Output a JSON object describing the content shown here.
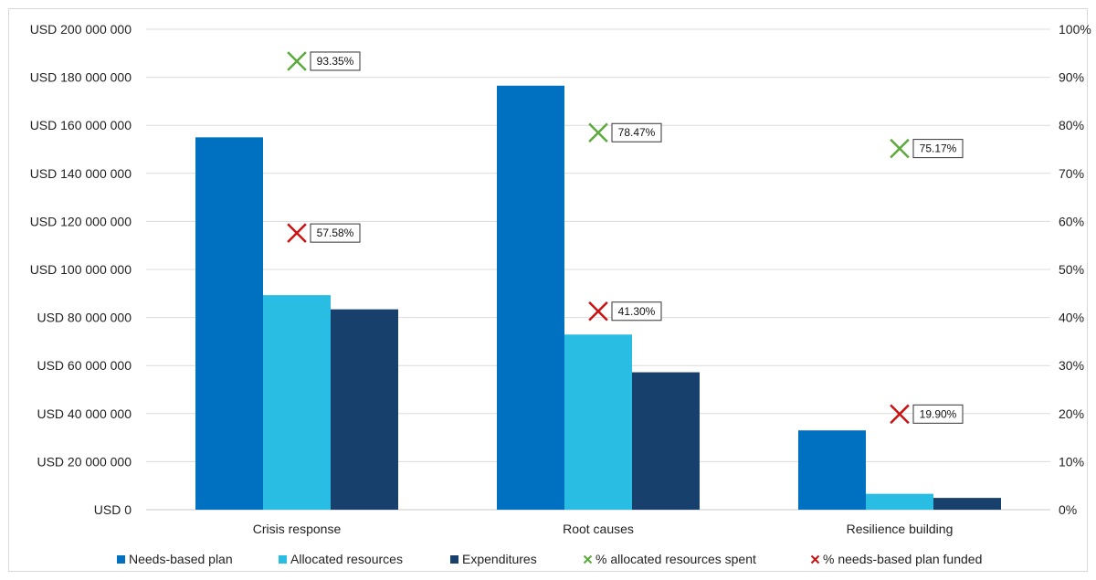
{
  "chart_data": {
    "type": "bar",
    "categories": [
      "Crisis response",
      "Root causes",
      "Resilience building"
    ],
    "series": [
      {
        "name": "Needs-based plan",
        "axis": "left",
        "color": "#0070c0",
        "values": [
          155000000,
          176500000,
          33000000
        ]
      },
      {
        "name": "Allocated resources",
        "axis": "left",
        "color": "#29bde3",
        "values": [
          89300000,
          72900000,
          6600000
        ]
      },
      {
        "name": "Expenditures",
        "axis": "left",
        "color": "#17406d",
        "values": [
          83400000,
          57200000,
          4900000
        ]
      }
    ],
    "markers": [
      {
        "name": "% allocated resources spent",
        "axis": "right",
        "color": "#5aab3b",
        "values": [
          0.9335,
          0.7847,
          0.7517
        ],
        "labels": [
          "93.35%",
          "78.47%",
          "75.17%"
        ]
      },
      {
        "name": "% needs-based plan funded",
        "axis": "right",
        "color": "#cc1111",
        "values": [
          0.5758,
          0.413,
          0.199
        ],
        "labels": [
          "57.58%",
          "41.30%",
          "19.90%"
        ]
      }
    ],
    "y_left": {
      "ylim": [
        0,
        200000000
      ],
      "ticks": [
        0,
        20000000,
        40000000,
        60000000,
        80000000,
        100000000,
        120000000,
        140000000,
        160000000,
        180000000,
        200000000
      ],
      "tick_labels": [
        "USD 0",
        "USD 20 000 000",
        "USD 40 000 000",
        "USD 60 000 000",
        "USD 80 000 000",
        "USD 100 000 000",
        "USD 120 000 000",
        "USD 140 000 000",
        "USD 160 000 000",
        "USD 180 000 000",
        "USD 200 000 000"
      ]
    },
    "y_right": {
      "ylim": [
        0,
        1
      ],
      "ticks": [
        0,
        0.1,
        0.2,
        0.3,
        0.4,
        0.5,
        0.6,
        0.7,
        0.8,
        0.9,
        1.0
      ],
      "tick_labels": [
        "0%",
        "10%",
        "20%",
        "30%",
        "40%",
        "50%",
        "60%",
        "70%",
        "80%",
        "90%",
        "100%"
      ]
    },
    "grid": true,
    "legend_position": "bottom",
    "legend": [
      {
        "label": "Needs-based plan",
        "marker": "square",
        "color": "#0070c0"
      },
      {
        "label": "Allocated resources",
        "marker": "square",
        "color": "#29bde3"
      },
      {
        "label": "Expenditures",
        "marker": "square",
        "color": "#17406d"
      },
      {
        "label": "% allocated resources spent",
        "marker": "x",
        "color": "#5aab3b"
      },
      {
        "label": "% needs-based plan funded",
        "marker": "x",
        "color": "#cc1111"
      }
    ]
  }
}
